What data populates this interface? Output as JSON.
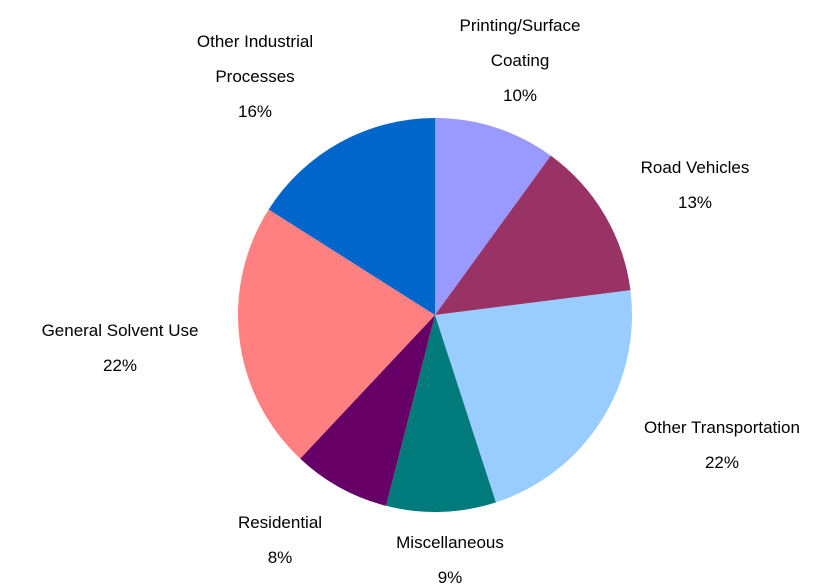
{
  "chart_data": {
    "type": "pie",
    "categories": [
      "Printing/Surface Coating",
      "Road Vehicles",
      "Other Transportation",
      "Miscellaneous",
      "Residential",
      "General Solvent Use",
      "Other Industrial Processes"
    ],
    "values": [
      10,
      13,
      22,
      9,
      8,
      22,
      16
    ],
    "value_labels": [
      "10%",
      "13%",
      "22%",
      "9%",
      "8%",
      "22%",
      "16%"
    ],
    "colors": [
      "#9999ff",
      "#993366",
      "#99ccff",
      "#007a7a",
      "#660066",
      "#ff8080",
      "#0066cc"
    ]
  }
}
